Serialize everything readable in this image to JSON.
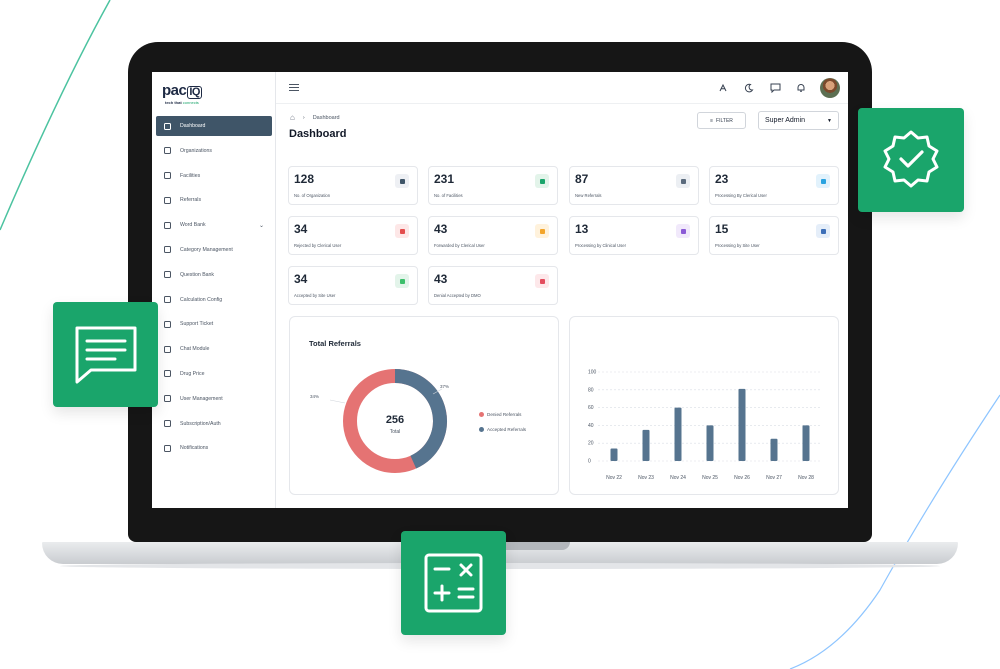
{
  "app": {
    "logo_main": "pac",
    "logo_q": "IQ",
    "logo_tagline_prefix": "tech that",
    "logo_tagline_accent": "connects"
  },
  "sidebar": {
    "items": [
      {
        "label": "Dashboard",
        "icon": "grid-icon",
        "active": true
      },
      {
        "label": "Organizations",
        "icon": "org-icon"
      },
      {
        "label": "Facilities",
        "icon": "building-icon"
      },
      {
        "label": "Referrals",
        "icon": "referral-icon"
      },
      {
        "label": "Word Bank",
        "icon": "word-bank-icon",
        "chevron": "⌄"
      },
      {
        "label": "Category Management",
        "icon": "category-icon"
      },
      {
        "label": "Question Bank",
        "icon": "question-icon"
      },
      {
        "label": "Calculation Config",
        "icon": "calculator-icon"
      },
      {
        "label": "Support Ticket",
        "icon": "support-icon"
      },
      {
        "label": "Chat Module",
        "icon": "chat-icon"
      },
      {
        "label": "Drug Price",
        "icon": "dollar-icon"
      },
      {
        "label": "User Management",
        "icon": "users-icon"
      },
      {
        "label": "Subscription/Auth",
        "icon": "subscription-icon"
      },
      {
        "label": "Notifications",
        "icon": "bell-icon"
      }
    ]
  },
  "topbar": {
    "icons": [
      "translate-icon",
      "moon-icon",
      "message-icon",
      "bell-icon"
    ]
  },
  "main": {
    "breadcrumb_current": "Dashboard",
    "title": "Dashboard",
    "filter_label": "FILTER",
    "role_value": "Super Admin"
  },
  "stats": [
    {
      "value": "128",
      "label": "No. of Organization",
      "icon_bg": "#eef0f4",
      "icon_fg": "#3f5568"
    },
    {
      "value": "231",
      "label": "No. of Facilities",
      "icon_bg": "#e3f4ea",
      "icon_fg": "#1aa56b"
    },
    {
      "value": "87",
      "label": "New Referrals",
      "icon_bg": "#eceff3",
      "icon_fg": "#5b6b7d"
    },
    {
      "value": "23",
      "label": "Processing By Clerical User",
      "icon_bg": "#e2f2fc",
      "icon_fg": "#2aa3e0"
    },
    {
      "value": "34",
      "label": "Rejected by Clerical User",
      "icon_bg": "#fde7e7",
      "icon_fg": "#e34d4d"
    },
    {
      "value": "43",
      "label": "Forwarded by Clerical User",
      "icon_bg": "#fff2dc",
      "icon_fg": "#f3a52b"
    },
    {
      "value": "13",
      "label": "Processing by Clinical User",
      "icon_bg": "#f1e9fb",
      "icon_fg": "#8b5ad6"
    },
    {
      "value": "15",
      "label": "Processing by Site User",
      "icon_bg": "#e5eef9",
      "icon_fg": "#3d6fb8"
    },
    {
      "value": "34",
      "label": "Accepted by Site User",
      "icon_bg": "#e3f4ea",
      "icon_fg": "#3cbf6b"
    },
    {
      "value": "43",
      "label": "Denial Accepted by DMO",
      "icon_bg": "#fde8ea",
      "icon_fg": "#e34d5e"
    }
  ],
  "donut": {
    "title": "Total Referrals",
    "total": "256",
    "total_label": "Total",
    "pct_left": "34%",
    "pct_right": "37%",
    "legend": [
      {
        "label": "Denied Referrals",
        "color": "#e57373"
      },
      {
        "label": "Accepted Referrals",
        "color": "#56748f"
      }
    ]
  },
  "chart_data": {
    "type": "bar",
    "categories": [
      "Nov 22",
      "Nov 23",
      "Nov 24",
      "Nov 25",
      "Nov 26",
      "Nov 27",
      "Nov 28"
    ],
    "values": [
      14,
      35,
      60,
      40,
      81,
      25,
      40
    ],
    "ylim": [
      0,
      100
    ],
    "yticks": [
      0,
      20,
      40,
      60,
      80,
      100
    ],
    "color": "#56748f",
    "grid": true,
    "title": "",
    "xlabel": "",
    "ylabel": ""
  },
  "colors": {
    "brand_green": "#1aa56b",
    "sidebar_active": "#3f5568",
    "denied": "#e57373",
    "accepted": "#56748f"
  },
  "badges": [
    "verified-badge-icon",
    "chat-lines-icon",
    "calculator-icon"
  ]
}
